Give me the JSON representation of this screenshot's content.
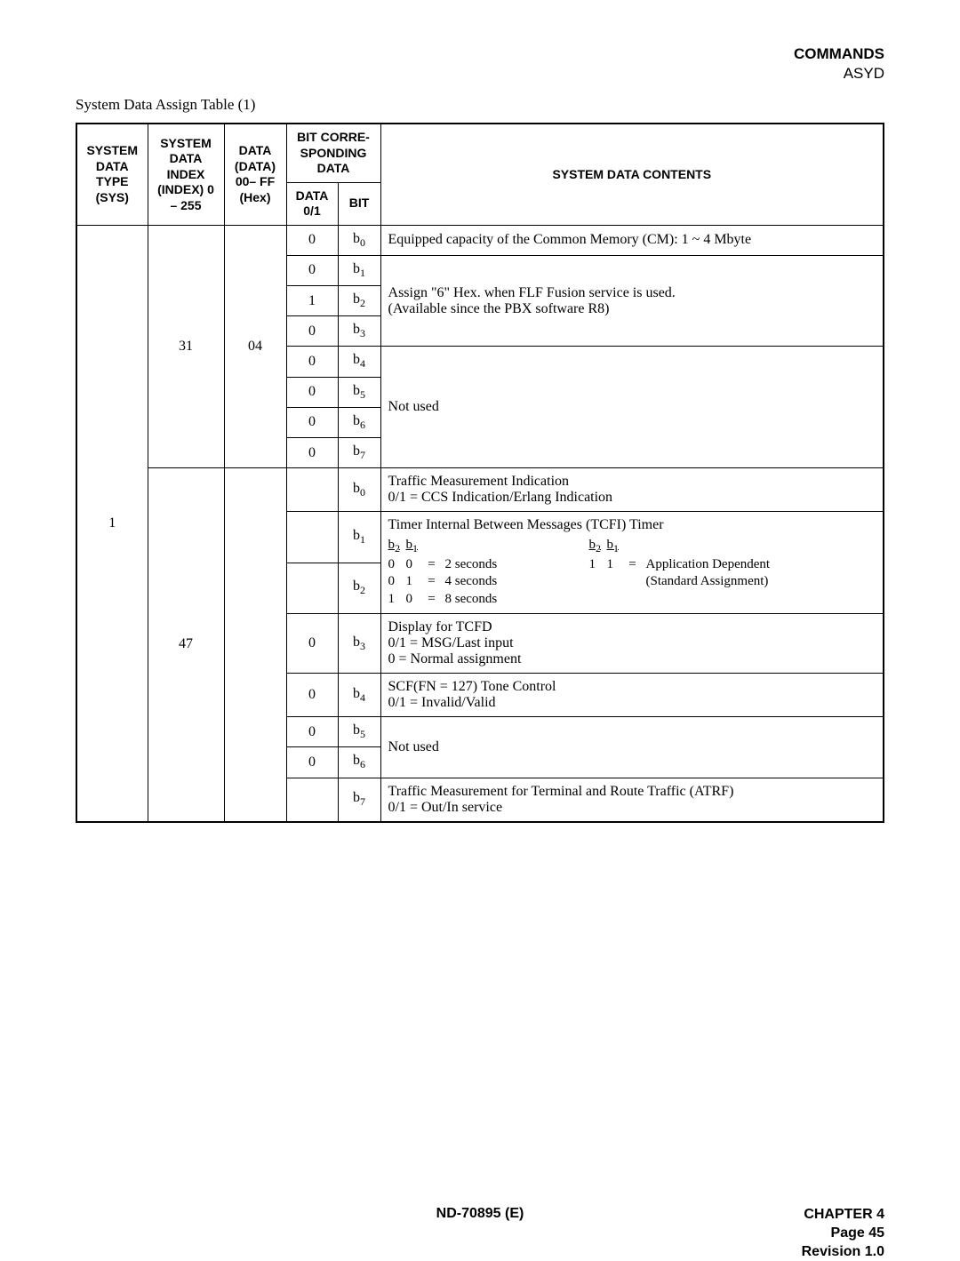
{
  "header": {
    "line1": "COMMANDS",
    "line2": "ASYD"
  },
  "caption": "System Data Assign Table (1)",
  "columns": {
    "sys": "SYSTEM DATA TYPE (SYS)",
    "index": "SYSTEM DATA INDEX (INDEX) 0 – 255",
    "data": "DATA (DATA) 00– FF (Hex)",
    "bitgroup": "BIT CORRE-SPONDING DATA",
    "d01": "DATA 0/1",
    "bit": "BIT",
    "contents": "SYSTEM DATA CONTENTS"
  },
  "table": {
    "sys": "1",
    "group31": {
      "index": "31",
      "data": "04",
      "rows": [
        {
          "d01": "0",
          "bit_base": "b",
          "bit_sub": "0",
          "content": "Equipped capacity of the Common Memory (CM):  1 ~ 4 Mbyte"
        },
        {
          "d01": "0",
          "bit_base": "b",
          "bit_sub": "1",
          "content_line1": "Assign \"6\" Hex. when FLF Fusion service is used.",
          "content_line2": "(Available since the PBX software R8)"
        },
        {
          "d01": "1",
          "bit_base": "b",
          "bit_sub": "2"
        },
        {
          "d01": "0",
          "bit_base": "b",
          "bit_sub": "3"
        },
        {
          "d01": "0",
          "bit_base": "b",
          "bit_sub": "4",
          "content": "Not used"
        },
        {
          "d01": "0",
          "bit_base": "b",
          "bit_sub": "5"
        },
        {
          "d01": "0",
          "bit_base": "b",
          "bit_sub": "6"
        },
        {
          "d01": "0",
          "bit_base": "b",
          "bit_sub": "7"
        }
      ]
    },
    "group47": {
      "index": "47",
      "data": "",
      "rows": {
        "b0": {
          "d01": "",
          "bit_sub": "0",
          "line1": "Traffic Measurement Indication",
          "line2": "0/1 = CCS Indication/Erlang Indication"
        },
        "b1": {
          "d01": "",
          "bit_sub": "1",
          "title": "Timer Internal Between Messages (TCFI) Timer"
        },
        "b2": {
          "d01": "",
          "bit_sub": "2"
        },
        "tcfi": {
          "h_b2": "b",
          "h_b2_sub": "2",
          "h_b1": "b",
          "h_b1_sub": "1",
          "r1_c1": "0",
          "r1_c2": "0",
          "r1_eq": "=",
          "r1_v": "2 seconds",
          "r2_c1": "0",
          "r2_c2": "1",
          "r2_eq": "=",
          "r2_v": "4 seconds",
          "r3_c1": "1",
          "r3_c2": "0",
          "r3_eq": "=",
          "r3_v": "8 seconds",
          "r1b_c1": "1",
          "r1b_c2": "1",
          "r1b_eq": "=",
          "r1b_v": "Application Dependent",
          "r1b_note": "(Standard Assignment)"
        },
        "b3": {
          "d01": "0",
          "bit_sub": "3",
          "line1": "Display for TCFD",
          "line2": "0/1 = MSG/Last input",
          "line3": "0 = Normal assignment"
        },
        "b4": {
          "d01": "0",
          "bit_sub": "4",
          "line1": "SCF(FN = 127) Tone Control",
          "line2": "0/1 = Invalid/Valid"
        },
        "b5": {
          "d01": "0",
          "bit_sub": "5",
          "content": "Not used"
        },
        "b6": {
          "d01": "0",
          "bit_sub": "6"
        },
        "b7": {
          "d01": "",
          "bit_sub": "7",
          "line1": "Traffic Measurement for Terminal and Route Traffic (ATRF)",
          "line2": "0/1 = Out/In service"
        }
      }
    }
  },
  "bit_base": "b",
  "footer": {
    "center": "ND-70895 (E)",
    "right1": "CHAPTER 4",
    "right2": "Page 45",
    "right3": "Revision 1.0"
  }
}
